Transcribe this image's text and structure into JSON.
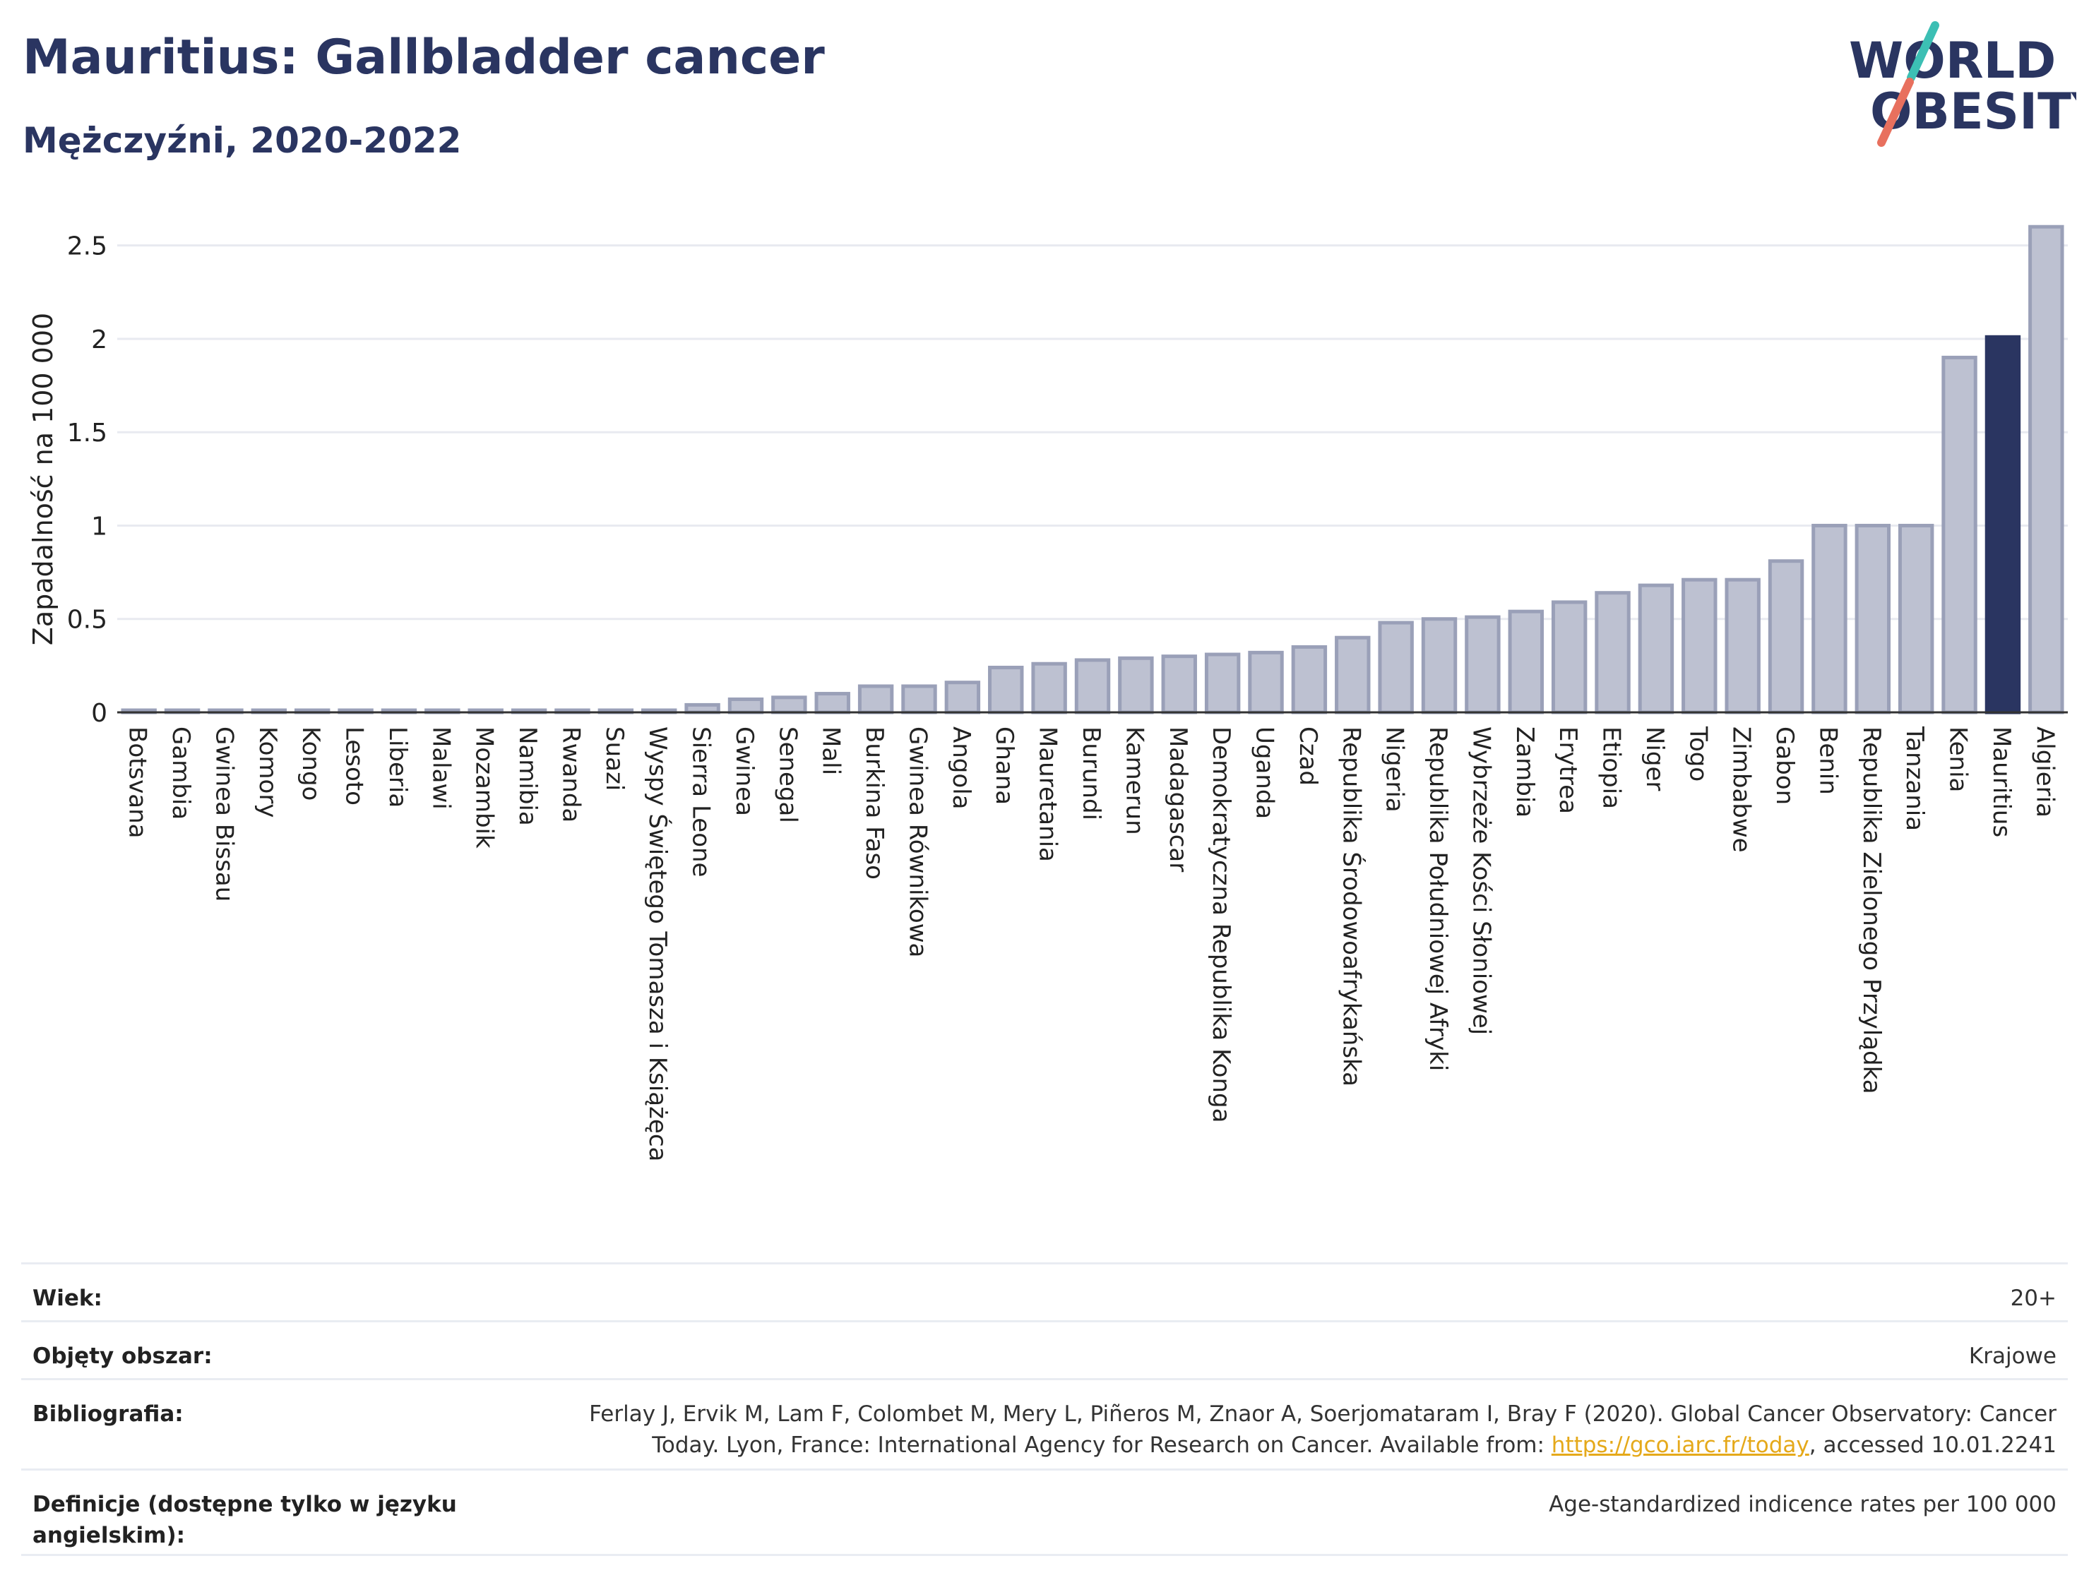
{
  "header": {
    "title": "Mauritius: Gallbladder cancer",
    "subtitle": "Mężczyźni, 2020-2022"
  },
  "logo": {
    "line1": "WORLD",
    "line2": "OBESITY"
  },
  "colors": {
    "bar_default": "#bdc1d1",
    "bar_default_stroke": "#9aa0b8",
    "bar_highlight": "#2a3561",
    "title": "#2a3561",
    "logo_teal": "#3cbfb4",
    "logo_coral": "#e8705e"
  },
  "chart_data": {
    "type": "bar",
    "ylabel": "Zapadalność na 100 000",
    "ylim": [
      0,
      2.65
    ],
    "yticks": [
      0,
      0.5,
      1,
      1.5,
      2,
      2.5
    ],
    "ytick_labels": [
      "0",
      "0.5",
      "1",
      "1.5",
      "2",
      "2.5"
    ],
    "grid": true,
    "highlight": "Mauritius",
    "categories": [
      "Botsvana",
      "Gambia",
      "Gwinea Bissau",
      "Komory",
      "Kongo",
      "Lesoto",
      "Liberia",
      "Malawi",
      "Mozambik",
      "Namibia",
      "Rwanda",
      "Suazi",
      "Wyspy Świętego Tomasza i Książęca",
      "Sierra Leone",
      "Gwinea",
      "Senegal",
      "Mali",
      "Burkina Faso",
      "Gwinea Równikowa",
      "Angola",
      "Ghana",
      "Mauretania",
      "Burundi",
      "Kamerun",
      "Madagascar",
      "Demokratyczna Republika Konga",
      "Uganda",
      "Czad",
      "Republika Środowoafrykańska",
      "Nigeria",
      "Republika Południowej Afryki",
      "Wybrzeże Kości Słoniowej",
      "Zambia",
      "Erytrea",
      "Etiopia",
      "Niger",
      "Togo",
      "Zimbabwe",
      "Gabon",
      "Benin",
      "Republika Zielonego Przylądka",
      "Tanzania",
      "Kenia",
      "Mauritius",
      "Algieria"
    ],
    "values": [
      0.01,
      0.01,
      0.01,
      0.01,
      0.01,
      0.01,
      0.01,
      0.01,
      0.01,
      0.01,
      0.01,
      0.01,
      0.01,
      0.04,
      0.07,
      0.08,
      0.1,
      0.14,
      0.14,
      0.16,
      0.24,
      0.26,
      0.28,
      0.29,
      0.3,
      0.31,
      0.32,
      0.35,
      0.4,
      0.48,
      0.5,
      0.51,
      0.54,
      0.59,
      0.64,
      0.68,
      0.71,
      0.71,
      0.81,
      1.0,
      1.0,
      1.0,
      1.9,
      2.01,
      2.6
    ]
  },
  "meta": {
    "rows": [
      {
        "label": "Wiek:",
        "value": "20+"
      },
      {
        "label": "Objęty obszar:",
        "value": "Krajowe"
      },
      {
        "label": "Bibliografia:",
        "value_line1": "Ferlay J, Ervik M, Lam F, Colombet M, Mery L, Piñeros M, Znaor A, Soerjomataram I, Bray F (2020). Global Cancer Observatory: Cancer",
        "value_line2_pre": "Today. Lyon, France: International Agency for Research on Cancer. Available from: ",
        "link": "https://gco.iarc.fr/today",
        "value_line2_post": ", accessed 10.01.2241"
      },
      {
        "label": "Definicje (dostępne tylko w języku angielskim):",
        "value": "Age-standardized indicence rates per 100 000"
      }
    ]
  }
}
